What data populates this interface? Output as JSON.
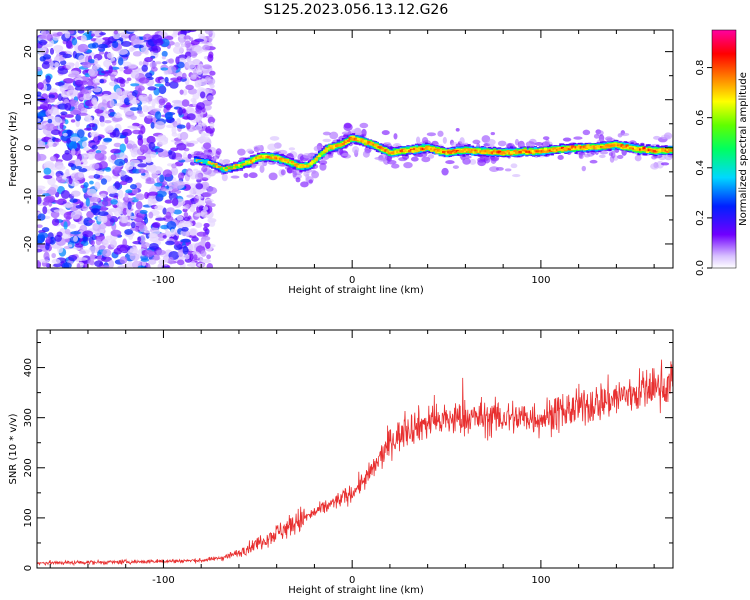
{
  "chart_data": [
    {
      "type": "heatmap",
      "title": "S125.2023.056.13.12.G26",
      "xlabel": "Height of straight line (km)",
      "ylabel": "Frequency (Hz)",
      "xlim": [
        -167,
        170
      ],
      "ylim": [
        -25,
        24.5
      ],
      "xticks": [
        -100,
        0,
        100
      ],
      "yticks": [
        -20,
        -10,
        0,
        10,
        20
      ],
      "colorbar": {
        "label": "Normalized spectral amplitude",
        "range": [
          0,
          0.95
        ],
        "ticks": [
          "0.0",
          "0.2",
          "0.4",
          "0.6",
          "0.8"
        ],
        "colormap": "white-purple-blue-cyan-green-yellow-red-magenta"
      },
      "noise_region_x": [
        -167,
        -80
      ],
      "ridge": {
        "x": [
          -83,
          -75,
          -68,
          -62,
          -55,
          -48,
          -40,
          -33,
          -27,
          -22,
          -17,
          -12,
          -5,
          0,
          5,
          12,
          20,
          30,
          40,
          50,
          60,
          70,
          80,
          90,
          100,
          110,
          120,
          130,
          140,
          150,
          160,
          170
        ],
        "y": [
          -2.5,
          -3.2,
          -4.5,
          -4,
          -3,
          -1.8,
          -2,
          -3,
          -4,
          -3.5,
          -1.5,
          0,
          0.8,
          2,
          1.5,
          0.5,
          -1,
          -0.5,
          0,
          -1,
          -0.5,
          -0.8,
          -1,
          -0.8,
          -0.7,
          -0.3,
          0,
          0.2,
          0.6,
          -0.2,
          -0.6,
          -0.5
        ],
        "amp": [
          0.4,
          0.5,
          0.55,
          0.6,
          0.7,
          0.85,
          0.85,
          0.75,
          0.75,
          0.7,
          0.7,
          0.75,
          0.85,
          0.85,
          0.8,
          0.85,
          0.85,
          0.85,
          0.9,
          0.9,
          0.85,
          0.85,
          0.9,
          0.9,
          0.9,
          0.9,
          0.85,
          0.85,
          0.9,
          0.9,
          0.9,
          0.85
        ]
      }
    },
    {
      "type": "line",
      "xlabel": "Height of straight line (km)",
      "ylabel": "SNR (10 * v/v)",
      "xlim": [
        -167,
        170
      ],
      "ylim": [
        0,
        475
      ],
      "xticks": [
        -100,
        0,
        100
      ],
      "yticks": [
        0,
        100,
        200,
        300,
        400
      ],
      "series": [
        {
          "color": "#e83030",
          "trend_x": [
            -167,
            -120,
            -80,
            -70,
            -60,
            -50,
            -40,
            -30,
            -20,
            -10,
            0,
            10,
            20,
            30,
            40,
            60,
            80,
            100,
            120,
            140,
            160,
            170
          ],
          "trend_y": [
            10,
            12,
            15,
            20,
            30,
            50,
            70,
            90,
            110,
            130,
            150,
            190,
            250,
            280,
            290,
            300,
            300,
            300,
            320,
            340,
            360,
            370
          ]
        }
      ]
    }
  ]
}
